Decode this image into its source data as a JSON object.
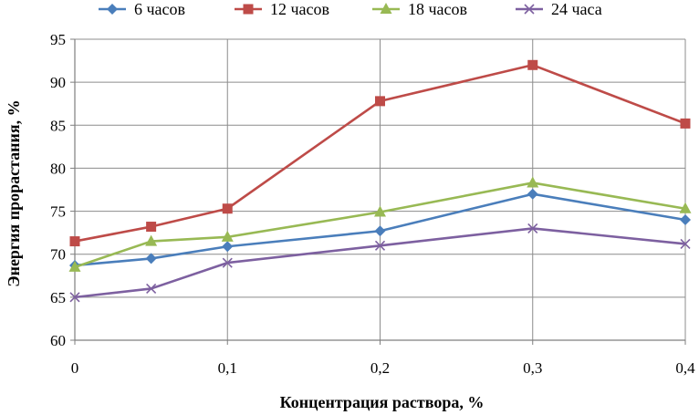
{
  "chart_data": {
    "type": "line",
    "title": "",
    "xlabel": "Концентрация раствора, %",
    "ylabel": "Энергия прорастания, %",
    "x": [
      0,
      0.05,
      0.1,
      0.2,
      0.3,
      0.4
    ],
    "x_ticks": [
      0,
      0.1,
      0.2,
      0.3,
      0.4
    ],
    "x_tick_labels": [
      "0",
      "0,1",
      "0,2",
      "0,3",
      "0,4"
    ],
    "xlim": [
      0,
      0.4
    ],
    "y_ticks": [
      60,
      65,
      70,
      75,
      80,
      85,
      90,
      95
    ],
    "y_tick_labels": [
      "60",
      "65",
      "70",
      "75",
      "80",
      "85",
      "90",
      "95"
    ],
    "ylim": [
      60,
      95
    ],
    "grid": "both",
    "legend_position": "top",
    "series": [
      {
        "name": "6 часов",
        "values": [
          68.7,
          69.5,
          70.9,
          72.7,
          77.0,
          74.0
        ],
        "color": "#4a7ebb",
        "marker": "diamond"
      },
      {
        "name": "12 часов",
        "values": [
          71.5,
          73.2,
          75.3,
          87.8,
          92.0,
          85.2
        ],
        "color": "#be4b48",
        "marker": "square"
      },
      {
        "name": "18 часов",
        "values": [
          68.5,
          71.5,
          72.0,
          74.9,
          78.3,
          75.3
        ],
        "color": "#98b954",
        "marker": "triangle"
      },
      {
        "name": "24 часа",
        "values": [
          65.0,
          66.0,
          69.0,
          71.0,
          73.0,
          71.2
        ],
        "color": "#7d60a0",
        "marker": "x"
      }
    ]
  }
}
